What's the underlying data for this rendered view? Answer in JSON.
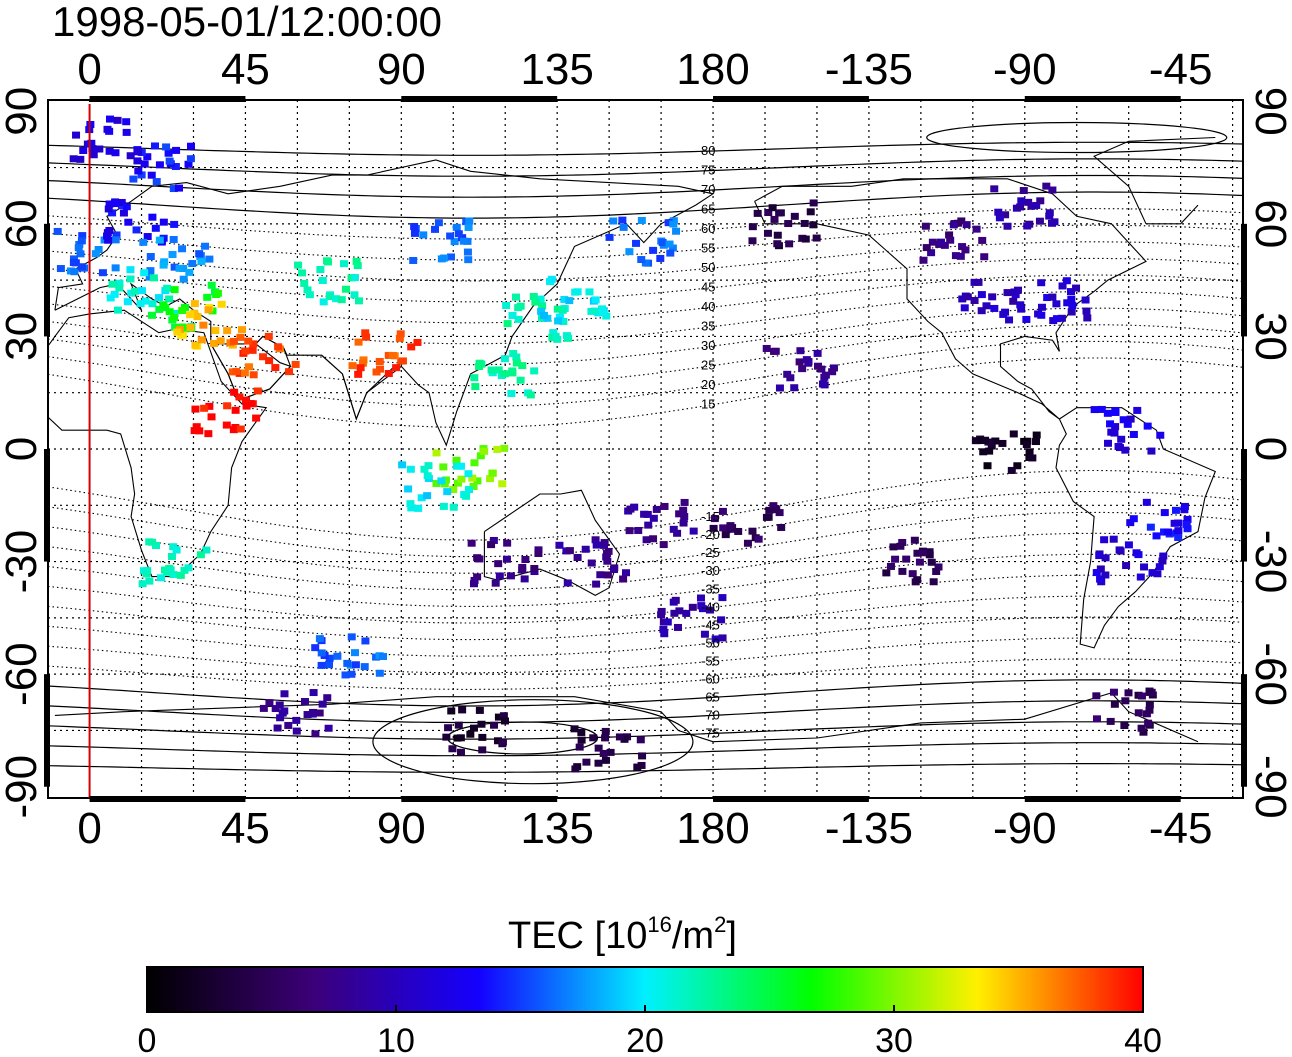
{
  "title": "1998-05-01/12:00:00",
  "map": {
    "lon_ticks": [
      "0",
      "45",
      "90",
      "135",
      "180",
      "-135",
      "-90",
      "-45"
    ],
    "lat_ticks": [
      "90",
      "60",
      "30",
      "0",
      "-30",
      "-60",
      "-90"
    ],
    "lon_tick_values": [
      0,
      45,
      90,
      135,
      180,
      225,
      270,
      315
    ],
    "lat_tick_values": [
      90,
      60,
      30,
      0,
      -30,
      -60,
      -90
    ],
    "lon_range": [
      -12,
      333
    ],
    "lat_range": [
      -93,
      93
    ],
    "grid": "dotted",
    "reference_meridian_lon": 0,
    "reference_meridian_color": "#d40000",
    "magnetic_latitude_labels": [
      "80",
      "75",
      "70",
      "65",
      "60",
      "55",
      "50",
      "45",
      "40",
      "35",
      "30",
      "25",
      "20",
      "15",
      "-15",
      "-20",
      "-25",
      "-30",
      "-35",
      "-40",
      "-45",
      "-50",
      "-55",
      "-60",
      "-65",
      "-70",
      "-75"
    ]
  },
  "colorbar": {
    "title": "TEC  [10",
    "title_sup": "16",
    "title_unit": "/m",
    "title_unit_sup": "2",
    "title_close": "]",
    "ticks": [
      "0",
      "10",
      "20",
      "30",
      "40"
    ],
    "min": 0,
    "max": 40,
    "stops": [
      "#000000",
      "#3c0078",
      "#1400ff",
      "#00f0ff",
      "#00ff00",
      "#fff000",
      "#ff0000"
    ]
  },
  "tec_clusters": [
    {
      "lon": 0,
      "lat": 52,
      "tec": 16
    },
    {
      "lon": 15,
      "lat": 60,
      "tec": 13
    },
    {
      "lon": 25,
      "lat": 50,
      "tec": 17
    },
    {
      "lon": 15,
      "lat": 42,
      "tec": 21
    },
    {
      "lon": 28,
      "lat": 38,
      "tec": 26
    },
    {
      "lon": 35,
      "lat": 33,
      "tec": 35
    },
    {
      "lon": 20,
      "lat": 75,
      "tec": 14
    },
    {
      "lon": 5,
      "lat": 82,
      "tec": 12
    },
    {
      "lon": 40,
      "lat": 10,
      "tec": 40
    },
    {
      "lon": 50,
      "lat": 25,
      "tec": 38
    },
    {
      "lon": 85,
      "lat": 25,
      "tec": 38
    },
    {
      "lon": 70,
      "lat": 45,
      "tec": 22
    },
    {
      "lon": 100,
      "lat": 55,
      "tec": 16
    },
    {
      "lon": 130,
      "lat": 35,
      "tec": 22
    },
    {
      "lon": 140,
      "lat": 40,
      "tec": 20
    },
    {
      "lon": 120,
      "lat": 20,
      "tec": 22
    },
    {
      "lon": 110,
      "lat": -5,
      "tec": 30
    },
    {
      "lon": 100,
      "lat": -10,
      "tec": 20
    },
    {
      "lon": 25,
      "lat": -30,
      "tec": 22
    },
    {
      "lon": 75,
      "lat": -55,
      "tec": 16
    },
    {
      "lon": 120,
      "lat": -30,
      "tec": 7
    },
    {
      "lon": 145,
      "lat": -30,
      "tec": 8
    },
    {
      "lon": 165,
      "lat": -20,
      "tec": 8
    },
    {
      "lon": 175,
      "lat": -45,
      "tec": 9
    },
    {
      "lon": 190,
      "lat": -20,
      "tec": 5
    },
    {
      "lon": 150,
      "lat": -80,
      "tec": 4
    },
    {
      "lon": 110,
      "lat": -75,
      "tec": 3
    },
    {
      "lon": 60,
      "lat": -70,
      "tec": 8
    },
    {
      "lon": 160,
      "lat": 55,
      "tec": 16
    },
    {
      "lon": 200,
      "lat": 60,
      "tec": 4
    },
    {
      "lon": 260,
      "lat": 40,
      "tec": 10
    },
    {
      "lon": 250,
      "lat": 55,
      "tec": 7
    },
    {
      "lon": 280,
      "lat": 40,
      "tec": 11
    },
    {
      "lon": 270,
      "lat": 65,
      "tec": 9
    },
    {
      "lon": 205,
      "lat": 22,
      "tec": 8
    },
    {
      "lon": 300,
      "lat": 5,
      "tec": 12
    },
    {
      "lon": 310,
      "lat": -20,
      "tec": 13
    },
    {
      "lon": 300,
      "lat": -30,
      "tec": 11
    },
    {
      "lon": 265,
      "lat": 0,
      "tec": 2
    },
    {
      "lon": 300,
      "lat": -70,
      "tec": 5
    },
    {
      "lon": 240,
      "lat": -30,
      "tec": 5
    }
  ]
}
